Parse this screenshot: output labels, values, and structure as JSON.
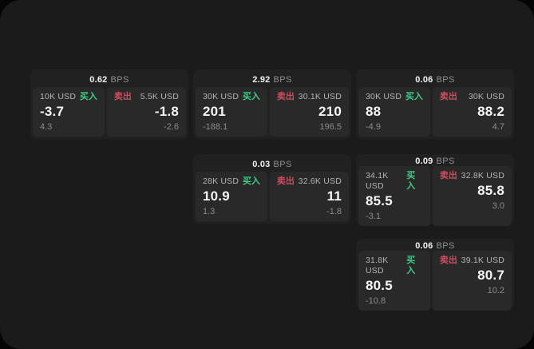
{
  "theme": {
    "outer_bg": "#050505",
    "surface_bg": "#1b1b1b",
    "card_bg": "#212121",
    "panel_bg": "#292929",
    "buy_color": "#3bcd85",
    "sell_color": "#d04b60",
    "price_color": "#f5f5f5",
    "muted_color": "#8b8b8b"
  },
  "labels": {
    "buy": "买入",
    "sell": "卖出",
    "bps": "BPS"
  },
  "cards": [
    {
      "row": 1,
      "col": 1,
      "bps": "0.62",
      "buy": {
        "size": "10K USD",
        "price": "-3.7",
        "delta": "4.3"
      },
      "sell": {
        "size": "5.5K USD",
        "price": "-1.8",
        "delta": "-2.6"
      }
    },
    {
      "row": 1,
      "col": 2,
      "bps": "2.92",
      "buy": {
        "size": "30K USD",
        "price": "201",
        "delta": "-188.1"
      },
      "sell": {
        "size": "30.1K USD",
        "price": "210",
        "delta": "196.5"
      }
    },
    {
      "row": 1,
      "col": 3,
      "bps": "0.06",
      "buy": {
        "size": "30K USD",
        "price": "88",
        "delta": "-4.9"
      },
      "sell": {
        "size": "30K USD",
        "price": "88.2",
        "delta": "4.7"
      }
    },
    {
      "row": 2,
      "col": 2,
      "bps": "0.03",
      "buy": {
        "size": "28K USD",
        "price": "10.9",
        "delta": "1.3"
      },
      "sell": {
        "size": "32.6K USD",
        "price": "11",
        "delta": "-1.8"
      }
    },
    {
      "row": 2,
      "col": 3,
      "bps": "0.09",
      "buy": {
        "size": "34.1K USD",
        "price": "85.5",
        "delta": "-3.1"
      },
      "sell": {
        "size": "32.8K USD",
        "price": "85.8",
        "delta": "3.0"
      }
    },
    {
      "row": 3,
      "col": 3,
      "bps": "0.06",
      "buy": {
        "size": "31.8K USD",
        "price": "80.5",
        "delta": "-10.8"
      },
      "sell": {
        "size": "39.1K USD",
        "price": "80.7",
        "delta": "10.2"
      }
    }
  ]
}
